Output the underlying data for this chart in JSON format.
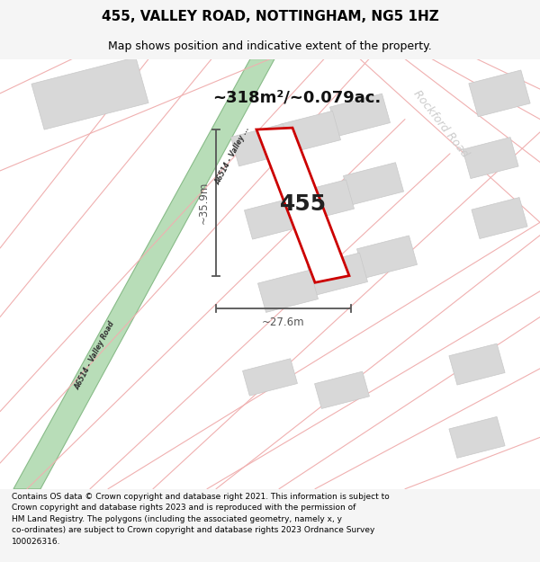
{
  "title": "455, VALLEY ROAD, NOTTINGHAM, NG5 1HZ",
  "subtitle": "Map shows position and indicative extent of the property.",
  "footer": "Contains OS data © Crown copyright and database right 2021. This information is subject to Crown copyright and database rights 2023 and is reproduced with the permission of\nHM Land Registry. The polygons (including the associated geometry, namely x, y\nco-ordinates) are subject to Crown copyright and database rights 2023 Ordnance Survey\n100026316.",
  "area_label": "~318m²/~0.079ac.",
  "number_label": "455",
  "dim_h": "~35.9m",
  "dim_w": "~27.6m",
  "road_label_top": "A6514 - Valley ...",
  "road_label_bot": "A6514 - Valley Road",
  "rockford_label": "Rockford Road",
  "bg_color": "#f5f5f5",
  "map_bg": "#ffffff",
  "road_green_fill": "#b8ddb8",
  "road_green_edge": "#88bb88",
  "building_fill": "#d8d8d8",
  "building_edge": "#c8c8c8",
  "road_pink": "#f0b0b0",
  "plot_fill": "#ffffff",
  "plot_edge": "#cc0000",
  "dim_color": "#555555",
  "title_fs": 11,
  "subtitle_fs": 9,
  "footer_fs": 6.5
}
